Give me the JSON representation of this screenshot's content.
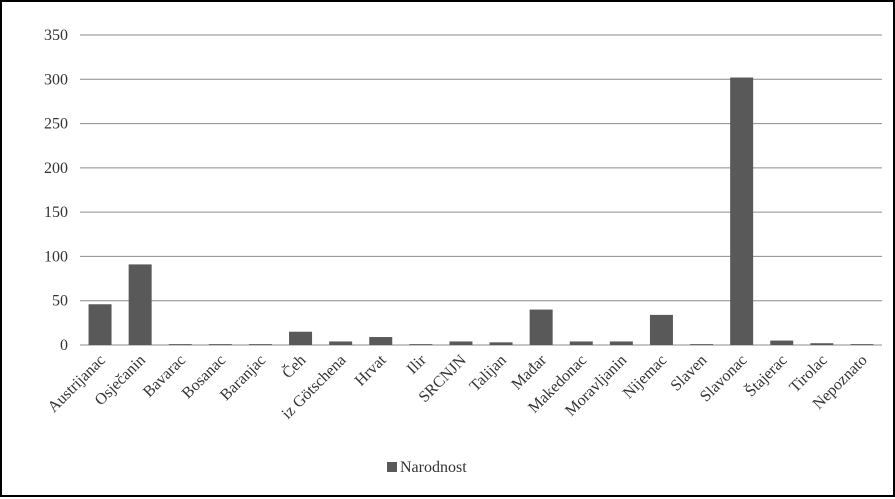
{
  "chart_data": {
    "type": "bar",
    "categories": [
      "Austrijanac",
      "Osječanin",
      "Bavarac",
      "Bosanac",
      "Baranjac",
      "Čeh",
      "iz Götschena",
      "Hrvat",
      "Ilir",
      "SRCNJN",
      "Talijan",
      "Mađar",
      "Makedonac",
      "Moravljanin",
      "Nijemac",
      "Slaven",
      "Slavonac",
      "Štajerac",
      "Tirolac",
      "Nepoznato"
    ],
    "series": [
      {
        "name": "Narodnost",
        "values": [
          46,
          91,
          1,
          1,
          1,
          15,
          4,
          9,
          1,
          4,
          3,
          40,
          4,
          4,
          34,
          1,
          302,
          5,
          2,
          1
        ]
      }
    ],
    "title": "",
    "xlabel": "",
    "ylabel": "",
    "ylim": [
      0,
      350
    ],
    "yticks": [
      0,
      50,
      100,
      150,
      200,
      250,
      300,
      350
    ],
    "grid": true,
    "legend": "bottom",
    "colors": {
      "bar": "#595959",
      "grid": "#8c8c8c",
      "text": "#333333"
    }
  }
}
